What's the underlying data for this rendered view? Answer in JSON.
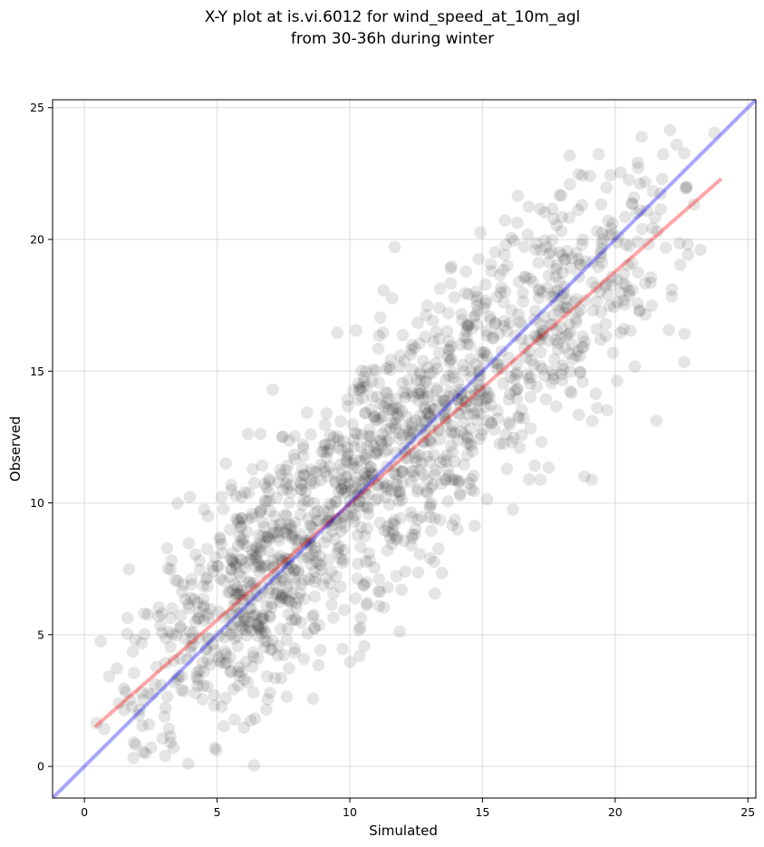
{
  "chart_data": {
    "type": "scatter",
    "title": "X-Y plot at is.vi.6012 for wind_speed_at_10m_agl",
    "subtitle": "from 30-36h during winter",
    "xlabel": "Simulated",
    "ylabel": "Observed",
    "xlim": [
      -1.2,
      25.3
    ],
    "ylim": [
      -1.2,
      25.3
    ],
    "xticks": [
      0,
      5,
      10,
      15,
      20,
      25
    ],
    "yticks": [
      0,
      5,
      10,
      15,
      20,
      25
    ],
    "xtick_labels": [
      "0",
      "5",
      "10",
      "15",
      "20",
      "25"
    ],
    "ytick_labels": [
      "0",
      "5",
      "10",
      "15",
      "20",
      "25"
    ],
    "grid": true,
    "point_color": "#000000",
    "point_alpha": 0.1,
    "point_count": 1500,
    "points": [],
    "lines": [
      {
        "role": "fit",
        "color": "#ff0000",
        "alpha": 0.35,
        "x": [
          0.4,
          24.0
        ],
        "y": [
          1.5,
          22.3
        ]
      },
      {
        "role": "identity",
        "color": "#0000ff",
        "alpha": 0.35,
        "x": [
          -1.2,
          25.3
        ],
        "y": [
          -1.2,
          25.3
        ]
      }
    ]
  }
}
